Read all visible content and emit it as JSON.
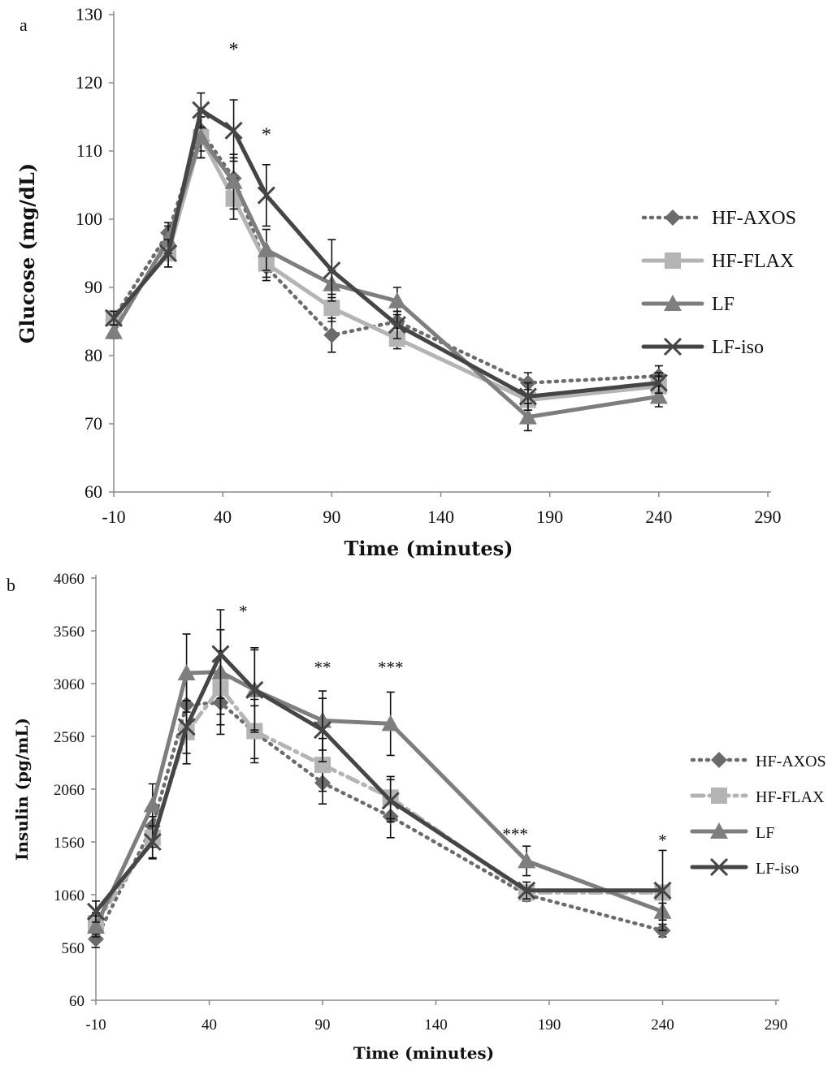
{
  "chart_data": [
    {
      "panel_label": "a",
      "type": "line",
      "title": "",
      "xlabel": "Time (minutes)",
      "ylabel": "Glucose (mg/dL)",
      "xlim": [
        -10,
        290
      ],
      "ylim": [
        60,
        130
      ],
      "x_ticks": [
        "-10",
        "40",
        "90",
        "140",
        "190",
        "240",
        "290"
      ],
      "y_ticks": [
        "60",
        "70",
        "80",
        "90",
        "100",
        "110",
        "120",
        "130"
      ],
      "legend_position": "right",
      "series": [
        {
          "name": "HF-AXOS",
          "style": "dotted",
          "marker": "diamond",
          "color": "#6b6b6b",
          "x": [
            -10,
            15,
            30,
            45,
            60,
            90,
            120,
            180,
            240
          ],
          "y": [
            85.5,
            98,
            113,
            106,
            93,
            83,
            85,
            76,
            77
          ],
          "err": [
            1,
            1.5,
            3,
            3,
            2,
            2.5,
            1.5,
            1.5,
            1.5
          ]
        },
        {
          "name": "HF-FLAX",
          "style": "solid",
          "marker": "square",
          "color": "#b4b4b4",
          "x": [
            -10,
            15,
            30,
            45,
            60,
            90,
            120,
            180,
            240
          ],
          "y": [
            85.5,
            95,
            112,
            103,
            93.5,
            87,
            82.5,
            73.5,
            75.5
          ],
          "err": [
            1,
            2,
            3,
            3,
            2,
            2,
            1.5,
            1.5,
            1.5
          ]
        },
        {
          "name": "LF",
          "style": "solid",
          "marker": "triangle",
          "color": "#7e7e7e",
          "x": [
            -10,
            15,
            30,
            45,
            60,
            90,
            120,
            180,
            240
          ],
          "y": [
            83.5,
            97,
            112,
            105.5,
            95.5,
            90.5,
            88,
            71,
            74
          ],
          "err": [
            1,
            2,
            3,
            4,
            3,
            2,
            2,
            2,
            1.5
          ]
        },
        {
          "name": "LF-iso",
          "style": "solid",
          "marker": "x",
          "color": "#454545",
          "x": [
            -10,
            15,
            30,
            45,
            60,
            90,
            120,
            180,
            240
          ],
          "y": [
            85.5,
            95,
            116,
            113,
            103.5,
            92.5,
            84.5,
            74,
            76
          ],
          "err": [
            1,
            2,
            2.5,
            4.5,
            4.5,
            4.5,
            2,
            2,
            1.5
          ]
        }
      ],
      "annotations": [
        {
          "text": "*",
          "x": 45,
          "y": 124
        },
        {
          "text": "*",
          "x": 60,
          "y": 111.5
        }
      ]
    },
    {
      "panel_label": "b",
      "type": "line",
      "title": "",
      "xlabel": "Time (minutes)",
      "ylabel": "Insulin (pg/mL)",
      "xlim": [
        -10,
        290
      ],
      "ylim": [
        60,
        4060
      ],
      "x_ticks": [
        "-10",
        "40",
        "90",
        "140",
        "190",
        "240",
        "290"
      ],
      "y_ticks": [
        "60",
        "560",
        "1060",
        "1560",
        "2060",
        "2560",
        "3060",
        "3560",
        "4060"
      ],
      "legend_position": "right",
      "series": [
        {
          "name": "HF-AXOS",
          "style": "dotted",
          "marker": "diamond",
          "color": "#6b6b6b",
          "x": [
            -10,
            15,
            30,
            45,
            60,
            90,
            120,
            180,
            240
          ],
          "y": [
            640,
            1710,
            2860,
            2880,
            2600,
            2120,
            1800,
            1060,
            720
          ],
          "err": [
            80,
            200,
            300,
            300,
            250,
            200,
            200,
            60,
            60
          ]
        },
        {
          "name": "HF-FLAX",
          "style": "dashdot",
          "marker": "square",
          "color": "#b4b4b4",
          "x": [
            -10,
            15,
            30,
            45,
            60,
            90,
            120,
            180,
            240
          ],
          "y": [
            790,
            1600,
            2600,
            3020,
            2610,
            2290,
            1980,
            1080,
            1080
          ],
          "err": [
            100,
            200,
            300,
            350,
            300,
            250,
            200,
            60,
            60
          ]
        },
        {
          "name": "LF",
          "style": "solid",
          "marker": "triangle",
          "color": "#7e7e7e",
          "x": [
            -10,
            15,
            30,
            45,
            60,
            90,
            120,
            180,
            240
          ],
          "y": [
            760,
            1910,
            3160,
            3170,
            3000,
            2710,
            2680,
            1380,
            900
          ],
          "err": [
            100,
            200,
            370,
            400,
            380,
            280,
            300,
            140,
            80
          ]
        },
        {
          "name": "LF-iso",
          "style": "solid",
          "marker": "x",
          "color": "#454545",
          "x": [
            -10,
            15,
            30,
            45,
            60,
            90,
            120,
            180,
            240
          ],
          "y": [
            900,
            1560,
            2650,
            3340,
            3000,
            2620,
            1950,
            1100,
            1100
          ],
          "err": [
            100,
            150,
            250,
            420,
            400,
            300,
            200,
            80,
            380
          ]
        }
      ],
      "annotations": [
        {
          "text": "*",
          "x": 55,
          "y": 3690
        },
        {
          "text": "**",
          "x": 90,
          "y": 3160
        },
        {
          "text": "***",
          "x": 120,
          "y": 3160
        },
        {
          "text": "***",
          "x": 175,
          "y": 1580
        },
        {
          "text": "*",
          "x": 240,
          "y": 1520
        }
      ]
    }
  ]
}
